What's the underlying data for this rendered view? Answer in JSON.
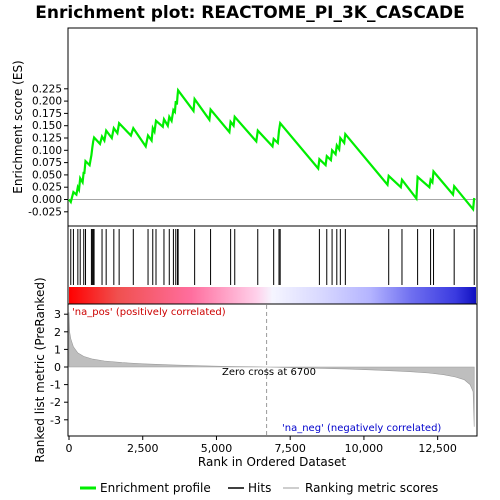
{
  "chart_data": {
    "type": "line",
    "title": "Enrichment plot: REACTOME_PI_3K_CASCADE",
    "top_panel": {
      "ylabel": "Enrichment score (ES)",
      "ylim": [
        -0.03,
        0.23
      ],
      "yticks": [
        "-0.025",
        "0.000",
        "0.025",
        "0.050",
        "0.075",
        "0.100",
        "0.125",
        "0.150",
        "0.175",
        "0.200",
        "0.225"
      ],
      "ytick_values": [
        -0.025,
        0,
        0.025,
        0.05,
        0.075,
        0.1,
        0.125,
        0.15,
        0.175,
        0.2,
        0.225
      ],
      "series_color": "#00ee00",
      "es_profile": [
        [
          0,
          0
        ],
        [
          60,
          -0.005
        ],
        [
          150,
          0.015
        ],
        [
          250,
          0.01
        ],
        [
          300,
          0.025
        ],
        [
          340,
          0.02
        ],
        [
          380,
          0.043
        ],
        [
          460,
          0.035
        ],
        [
          500,
          0.056
        ],
        [
          520,
          0.052
        ],
        [
          560,
          0.078
        ],
        [
          700,
          0.07
        ],
        [
          760,
          0.09
        ],
        [
          790,
          0.105
        ],
        [
          820,
          0.118
        ],
        [
          850,
          0.126
        ],
        [
          1050,
          0.113
        ],
        [
          1120,
          0.128
        ],
        [
          1200,
          0.12
        ],
        [
          1260,
          0.14
        ],
        [
          1450,
          0.125
        ],
        [
          1520,
          0.145
        ],
        [
          1640,
          0.135
        ],
        [
          1700,
          0.155
        ],
        [
          2100,
          0.13
        ],
        [
          2180,
          0.145
        ],
        [
          2600,
          0.108
        ],
        [
          2680,
          0.13
        ],
        [
          2800,
          0.12
        ],
        [
          2840,
          0.145
        ],
        [
          2900,
          0.138
        ],
        [
          2950,
          0.16
        ],
        [
          3180,
          0.148
        ],
        [
          3220,
          0.163
        ],
        [
          3350,
          0.15
        ],
        [
          3400,
          0.168
        ],
        [
          3480,
          0.16
        ],
        [
          3540,
          0.182
        ],
        [
          3590,
          0.178
        ],
        [
          3620,
          0.2
        ],
        [
          3660,
          0.193
        ],
        [
          3680,
          0.21
        ],
        [
          3700,
          0.222
        ],
        [
          4220,
          0.18
        ],
        [
          4260,
          0.204
        ],
        [
          4760,
          0.162
        ],
        [
          4800,
          0.183
        ],
        [
          5440,
          0.137
        ],
        [
          5480,
          0.158
        ],
        [
          5580,
          0.15
        ],
        [
          5620,
          0.168
        ],
        [
          6350,
          0.118
        ],
        [
          6400,
          0.14
        ],
        [
          6900,
          0.108
        ],
        [
          6940,
          0.123
        ],
        [
          7080,
          0.115
        ],
        [
          7120,
          0.14
        ],
        [
          7160,
          0.155
        ],
        [
          8450,
          0.063
        ],
        [
          8490,
          0.082
        ],
        [
          8700,
          0.07
        ],
        [
          8740,
          0.088
        ],
        [
          8880,
          0.08
        ],
        [
          8920,
          0.1
        ],
        [
          9040,
          0.092
        ],
        [
          9080,
          0.11
        ],
        [
          9160,
          0.102
        ],
        [
          9200,
          0.125
        ],
        [
          9330,
          0.115
        ],
        [
          9370,
          0.133
        ],
        [
          10800,
          0.03
        ],
        [
          10840,
          0.048
        ],
        [
          11250,
          0.025
        ],
        [
          11290,
          0.04
        ],
        [
          11780,
          0.002
        ],
        [
          11820,
          0.046
        ],
        [
          12220,
          0.025
        ],
        [
          12260,
          0.04
        ],
        [
          12320,
          0.035
        ],
        [
          12360,
          0.057
        ],
        [
          13020,
          0.01
        ],
        [
          13060,
          0.027
        ],
        [
          13700,
          -0.02
        ],
        [
          13740,
          0.003
        ]
      ]
    },
    "middle_panel": {
      "legend_label": "Hits",
      "hits": [
        60,
        150,
        300,
        380,
        500,
        560,
        760,
        790,
        820,
        850,
        1120,
        1260,
        1520,
        1700,
        2180,
        2680,
        2840,
        2950,
        3220,
        3400,
        3540,
        3620,
        3680,
        3700,
        4260,
        4800,
        5480,
        5620,
        6400,
        6940,
        7120,
        7160,
        8490,
        8740,
        8920,
        9080,
        9200,
        9370,
        10840,
        11290,
        11820,
        12260,
        12360,
        13060,
        13740
      ]
    },
    "bottom_panel": {
      "ylabel": "Ranked list metric (PreRanked)",
      "ylim": [
        -3.5,
        3.5
      ],
      "yticks": [
        "3",
        "2",
        "1",
        "0",
        "-1",
        "-2",
        "-3"
      ],
      "ytick_values": [
        3,
        2,
        1,
        0,
        -1,
        -2,
        -3
      ],
      "xlabel": "Rank in Ordered Dataset",
      "xticks": [
        "0",
        "2,500",
        "5,000",
        "7,500",
        "10,000",
        "12,500"
      ],
      "xtick_values": [
        0,
        2500,
        5000,
        7500,
        10000,
        12500
      ],
      "xlim": [
        0,
        13800
      ],
      "zero_cross": 6700,
      "zero_cross_label": "Zero cross at 6700",
      "pos_label": "'na_pos' (positively correlated)",
      "neg_label": "'na_neg' (negatively correlated)",
      "metric_curve": [
        [
          0,
          3.1
        ],
        [
          20,
          2.0
        ],
        [
          60,
          1.6
        ],
        [
          150,
          1.15
        ],
        [
          300,
          0.8
        ],
        [
          500,
          0.6
        ],
        [
          800,
          0.45
        ],
        [
          1200,
          0.34
        ],
        [
          1800,
          0.25
        ],
        [
          2500,
          0.18
        ],
        [
          3500,
          0.12
        ],
        [
          4500,
          0.07
        ],
        [
          5500,
          0.03
        ],
        [
          6700,
          0
        ],
        [
          8000,
          -0.05
        ],
        [
          9500,
          -0.12
        ],
        [
          10500,
          -0.18
        ],
        [
          11500,
          -0.26
        ],
        [
          12200,
          -0.34
        ],
        [
          12700,
          -0.44
        ],
        [
          13100,
          -0.57
        ],
        [
          13400,
          -0.72
        ],
        [
          13600,
          -1.0
        ],
        [
          13700,
          -1.4
        ],
        [
          13740,
          -3.4
        ]
      ]
    },
    "legend": {
      "placement": "bottom",
      "entries": [
        {
          "label": "Enrichment profile",
          "color": "#00ee00"
        },
        {
          "label": "Hits",
          "color": "#000000"
        },
        {
          "label": "Ranking metric scores",
          "color": "#bebebe"
        }
      ]
    }
  }
}
